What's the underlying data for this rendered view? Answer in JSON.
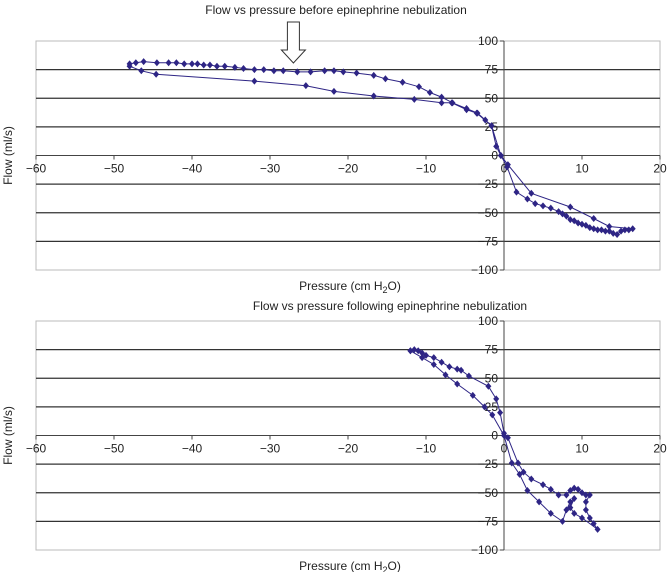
{
  "chart_data": [
    {
      "type": "line",
      "title": "Flow vs pressure before epinephrine nebulization",
      "xlabel": "Pressure (cm H",
      "xlabel_sub": "2",
      "xlabel_end": "O)",
      "ylabel": "Flow (ml/s)",
      "xlim": [
        -60,
        20
      ],
      "ylim": [
        -100,
        100
      ],
      "xticks": [
        -60,
        -50,
        -40,
        -30,
        -20,
        -10,
        0,
        10,
        20
      ],
      "yticks": [
        100,
        75,
        50,
        25,
        0,
        -25,
        -50,
        -75,
        -100
      ],
      "grid": true,
      "annotation": "down-arrow",
      "annotation_x": -27,
      "series": [
        {
          "name": "loop",
          "color": "#2e2585",
          "points": [
            [
              -48,
              80
            ],
            [
              -47.2,
              81
            ],
            [
              -46.2,
              82
            ],
            [
              -44.5,
              81
            ],
            [
              -43,
              81
            ],
            [
              -42,
              81
            ],
            [
              -41,
              80
            ],
            [
              -40,
              80
            ],
            [
              -39.3,
              80
            ],
            [
              -38.5,
              79
            ],
            [
              -37.7,
              79
            ],
            [
              -36.8,
              78
            ],
            [
              -35.8,
              78
            ],
            [
              -34.5,
              77
            ],
            [
              -33.4,
              76
            ],
            [
              -32,
              75
            ],
            [
              -30.8,
              75
            ],
            [
              -29.5,
              74
            ],
            [
              -28.3,
              74
            ],
            [
              -26.5,
              73
            ],
            [
              -24.8,
              73
            ],
            [
              -23,
              74
            ],
            [
              -21.8,
              74
            ],
            [
              -20.6,
              73
            ],
            [
              -18.9,
              72
            ],
            [
              -16.7,
              70
            ],
            [
              -15.2,
              67
            ],
            [
              -13,
              64
            ],
            [
              -10.9,
              60
            ],
            [
              -9.5,
              55
            ],
            [
              -8,
              51
            ],
            [
              -6.6,
              46
            ],
            [
              -4.8,
              41
            ],
            [
              -3.4,
              37
            ],
            [
              -2.4,
              31
            ],
            [
              -1.6,
              26
            ],
            [
              -1,
              8
            ],
            [
              -0.4,
              0
            ],
            [
              0.4,
              -10
            ],
            [
              1.6,
              -32
            ],
            [
              3,
              -38
            ],
            [
              4,
              -42
            ],
            [
              5,
              -44
            ],
            [
              6,
              -46
            ],
            [
              7,
              -49
            ],
            [
              7.5,
              -51
            ],
            [
              8,
              -53
            ],
            [
              8.5,
              -56
            ],
            [
              9,
              -57
            ],
            [
              9.5,
              -59
            ],
            [
              10,
              -60
            ],
            [
              10.5,
              -61
            ],
            [
              11,
              -63
            ],
            [
              11.5,
              -64
            ],
            [
              12,
              -65
            ],
            [
              12.5,
              -65
            ],
            [
              13,
              -66
            ],
            [
              13.5,
              -66
            ],
            [
              14,
              -68
            ],
            [
              14.5,
              -69
            ],
            [
              15,
              -66
            ],
            [
              15.5,
              -65
            ],
            [
              16,
              -65
            ],
            [
              16.5,
              -64
            ],
            [
              13.5,
              -62
            ],
            [
              11.5,
              -55
            ],
            [
              8.5,
              -45
            ],
            [
              3.5,
              -33
            ],
            [
              0.5,
              -8
            ],
            [
              -0.4,
              0
            ],
            [
              -1.6,
              26
            ],
            [
              -3.5,
              37
            ],
            [
              -4.8,
              40
            ],
            [
              -6.7,
              46
            ],
            [
              -8,
              46
            ],
            [
              -11.5,
              49
            ],
            [
              -16.7,
              52
            ],
            [
              -21.8,
              56
            ],
            [
              -25.4,
              61
            ],
            [
              -32,
              65
            ],
            [
              -44.6,
              71
            ],
            [
              -46.5,
              74
            ],
            [
              -48,
              78
            ]
          ]
        }
      ]
    },
    {
      "type": "line",
      "title": "Flow vs pressure following epinephrine nebulization",
      "xlabel": "Pressure (cm H",
      "xlabel_sub": "2",
      "xlabel_end": "O)",
      "ylabel": "Flow (ml/s)",
      "xlim": [
        -60,
        20
      ],
      "ylim": [
        -100,
        100
      ],
      "xticks": [
        -60,
        -50,
        -40,
        -30,
        -20,
        -10,
        0,
        10,
        20
      ],
      "yticks": [
        100,
        75,
        50,
        25,
        0,
        -25,
        -50,
        -75,
        -100
      ],
      "grid": true,
      "series": [
        {
          "name": "loop",
          "color": "#2e2585",
          "points": [
            [
              -12,
              74
            ],
            [
              -11.5,
              75
            ],
            [
              -11,
              74
            ],
            [
              -10.5,
              72
            ],
            [
              -10,
              70
            ],
            [
              -9,
              68
            ],
            [
              -8,
              64
            ],
            [
              -7,
              60
            ],
            [
              -6,
              58
            ],
            [
              -5.5,
              57
            ],
            [
              -4.5,
              52
            ],
            [
              -2,
              43
            ],
            [
              -1,
              32
            ],
            [
              -0.5,
              20
            ],
            [
              0,
              2
            ],
            [
              0.5,
              -2
            ],
            [
              1.8,
              -24
            ],
            [
              2.5,
              -32
            ],
            [
              3.5,
              -38
            ],
            [
              5,
              -43
            ],
            [
              6,
              -47
            ],
            [
              7,
              -52
            ],
            [
              8,
              -52
            ],
            [
              8.5,
              -48
            ],
            [
              9,
              -46
            ],
            [
              9.5,
              -47
            ],
            [
              10,
              -50
            ],
            [
              10.5,
              -52
            ],
            [
              11,
              -52
            ],
            [
              10.5,
              -58
            ],
            [
              10.5,
              -65
            ],
            [
              11,
              -72
            ],
            [
              11.5,
              -77
            ],
            [
              12,
              -82
            ],
            [
              10,
              -72
            ],
            [
              9,
              -68
            ],
            [
              8.5,
              -63
            ],
            [
              9,
              -55
            ],
            [
              8.5,
              -58
            ],
            [
              8,
              -65
            ],
            [
              7.5,
              -75
            ],
            [
              6,
              -68
            ],
            [
              4.5,
              -58
            ],
            [
              3,
              -48
            ],
            [
              2,
              -34
            ],
            [
              1,
              -24
            ],
            [
              0,
              0
            ],
            [
              -1.5,
              18
            ],
            [
              -2.5,
              25
            ],
            [
              -4,
              35
            ],
            [
              -6,
              45
            ],
            [
              -7.5,
              53
            ],
            [
              -9,
              62
            ],
            [
              -10.5,
              68
            ],
            [
              -12,
              74
            ]
          ]
        }
      ]
    }
  ]
}
